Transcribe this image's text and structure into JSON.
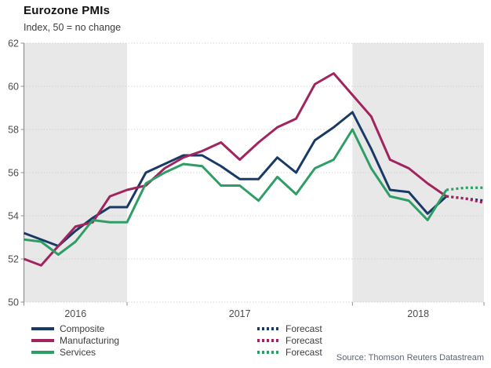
{
  "header": {
    "title": "Eurozone PMIs",
    "subtitle": "Index, 50 = no change"
  },
  "source_note": "Source: Thomson Reuters Datastream",
  "legend": {
    "forecast_label": "Forecast"
  },
  "colors": {
    "composite": "#1a3a66",
    "manufacturing": "#a1245f",
    "services": "#2e9e64",
    "band": "#e8e8e8",
    "grid": "#cdcdcd",
    "axis": "#8f8f8f",
    "tick_label": "#4d4d4d",
    "source_text": "#5b6573"
  },
  "chart_data": {
    "type": "line",
    "title": "Eurozone PMIs",
    "subtitle": "Index, 50 = no change",
    "xlabel": "",
    "ylabel": "Index, 50 = no change",
    "ylim": [
      50,
      62
    ],
    "yticks": [
      50,
      52,
      54,
      56,
      58,
      60,
      62
    ],
    "grid": "dotted horizontal gridlines",
    "legend_position": "bottom",
    "shaded_year_bands": [
      "2016",
      "2018"
    ],
    "year_labels": [
      "2016",
      "2017",
      "2018"
    ],
    "months": [
      "2016-07",
      "2016-08",
      "2016-09",
      "2016-10",
      "2016-11",
      "2016-12",
      "2017-01",
      "2017-02",
      "2017-03",
      "2017-04",
      "2017-05",
      "2017-06",
      "2017-07",
      "2017-08",
      "2017-09",
      "2017-10",
      "2017-11",
      "2017-12",
      "2018-01",
      "2018-02",
      "2018-03",
      "2018-04",
      "2018-05",
      "2018-06"
    ],
    "forecast_months": [
      "2018-07",
      "2018-08"
    ],
    "series": [
      {
        "name": "Composite",
        "color": "#1a3a66",
        "values": [
          53.2,
          52.9,
          52.6,
          53.3,
          53.9,
          54.4,
          54.4,
          56.0,
          56.4,
          56.8,
          56.8,
          56.3,
          55.7,
          55.7,
          56.7,
          56.0,
          57.5,
          58.1,
          58.8,
          57.1,
          55.2,
          55.1,
          54.1,
          54.9
        ],
        "forecast": [
          54.8,
          54.7
        ]
      },
      {
        "name": "Manufacturing",
        "color": "#a1245f",
        "values": [
          52.0,
          51.7,
          52.6,
          53.5,
          53.7,
          54.9,
          55.2,
          55.4,
          56.2,
          56.7,
          57.0,
          57.4,
          56.6,
          57.4,
          58.1,
          58.5,
          60.1,
          60.6,
          59.6,
          58.6,
          56.6,
          56.2,
          55.5,
          54.9
        ],
        "forecast": [
          54.8,
          54.6
        ]
      },
      {
        "name": "Services",
        "color": "#2e9e64",
        "values": [
          52.9,
          52.8,
          52.2,
          52.8,
          53.8,
          53.7,
          53.7,
          55.5,
          56.0,
          56.4,
          56.3,
          55.4,
          55.4,
          54.7,
          55.8,
          55.0,
          56.2,
          56.6,
          58.0,
          56.2,
          54.9,
          54.7,
          53.8,
          55.2
        ],
        "forecast": [
          55.3,
          55.3
        ]
      }
    ]
  }
}
